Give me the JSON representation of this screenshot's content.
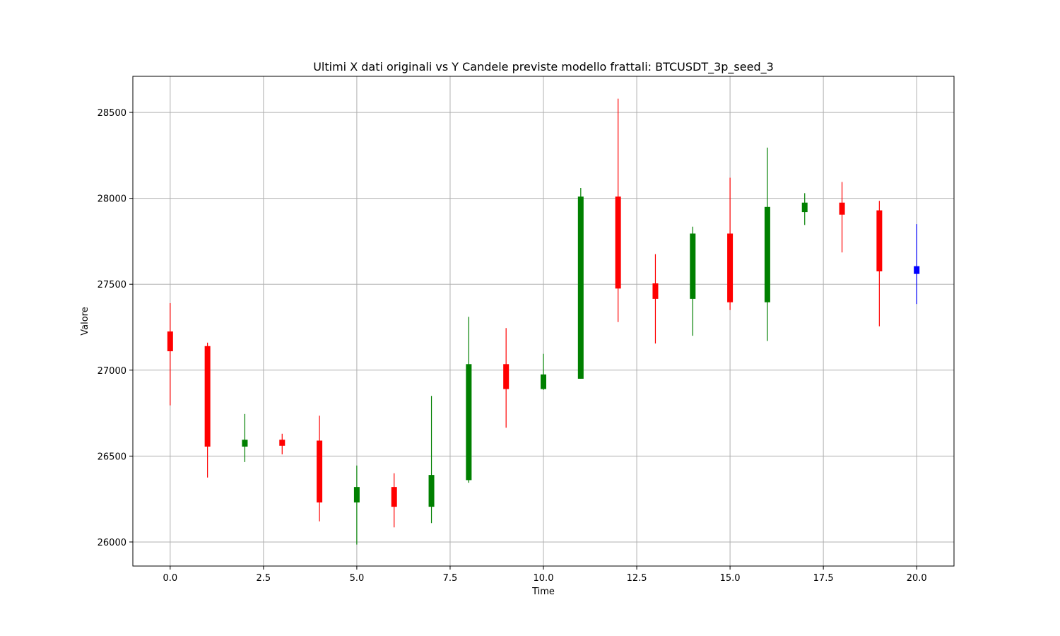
{
  "chart_data": {
    "type": "candlestick",
    "title": "Ultimi X dati originali vs Y Candele previste modello frattali: BTCUSDT_3p_seed_3",
    "xlabel": "Time",
    "ylabel": "Valore",
    "xlim": [
      -1,
      21
    ],
    "ylim": [
      25860,
      28710
    ],
    "xticks": [
      0,
      2.5,
      5,
      7.5,
      10,
      12.5,
      15,
      17.5,
      20
    ],
    "xtick_labels": [
      "0.0",
      "2.5",
      "5.0",
      "7.5",
      "10.0",
      "12.5",
      "15.0",
      "17.5",
      "20.0"
    ],
    "yticks": [
      26000,
      26500,
      27000,
      27500,
      28000,
      28500
    ],
    "ytick_labels": [
      "26000",
      "26500",
      "27000",
      "27500",
      "28000",
      "28500"
    ],
    "grid": true,
    "colors": {
      "up": "#008000",
      "down": "#ff0000",
      "predicted": "#0000ff",
      "grid": "#b0b0b0"
    },
    "candles": [
      {
        "t": 0,
        "open": 27225,
        "high": 27390,
        "low": 26795,
        "close": 27110,
        "color": "red"
      },
      {
        "t": 1,
        "open": 27140,
        "high": 27160,
        "low": 26375,
        "close": 26555,
        "color": "red"
      },
      {
        "t": 2,
        "open": 26555,
        "high": 26745,
        "low": 26465,
        "close": 26595,
        "color": "green"
      },
      {
        "t": 3,
        "open": 26595,
        "high": 26630,
        "low": 26510,
        "close": 26560,
        "color": "red"
      },
      {
        "t": 4,
        "open": 26590,
        "high": 26735,
        "low": 26120,
        "close": 26230,
        "color": "red"
      },
      {
        "t": 5,
        "open": 26230,
        "high": 26445,
        "low": 25985,
        "close": 26320,
        "color": "green"
      },
      {
        "t": 6,
        "open": 26320,
        "high": 26400,
        "low": 26085,
        "close": 26205,
        "color": "red"
      },
      {
        "t": 7,
        "open": 26205,
        "high": 26850,
        "low": 26110,
        "close": 26390,
        "color": "green"
      },
      {
        "t": 8,
        "open": 26360,
        "high": 27310,
        "low": 26345,
        "close": 27035,
        "color": "green"
      },
      {
        "t": 9,
        "open": 27035,
        "high": 27245,
        "low": 26665,
        "close": 26890,
        "color": "red"
      },
      {
        "t": 10,
        "open": 26890,
        "high": 27095,
        "low": 26885,
        "close": 26975,
        "color": "green"
      },
      {
        "t": 11,
        "open": 26950,
        "high": 28060,
        "low": 26950,
        "close": 28010,
        "color": "green"
      },
      {
        "t": 12,
        "open": 28010,
        "high": 28580,
        "low": 27280,
        "close": 27475,
        "color": "red"
      },
      {
        "t": 13,
        "open": 27505,
        "high": 27675,
        "low": 27155,
        "close": 27415,
        "color": "red"
      },
      {
        "t": 14,
        "open": 27415,
        "high": 27835,
        "low": 27200,
        "close": 27795,
        "color": "green"
      },
      {
        "t": 15,
        "open": 27795,
        "high": 28120,
        "low": 27350,
        "close": 27395,
        "color": "red"
      },
      {
        "t": 16,
        "open": 27395,
        "high": 28295,
        "low": 27170,
        "close": 27950,
        "color": "green"
      },
      {
        "t": 17,
        "open": 27920,
        "high": 28030,
        "low": 27845,
        "close": 27975,
        "color": "green"
      },
      {
        "t": 18,
        "open": 27975,
        "high": 28095,
        "low": 27685,
        "close": 27905,
        "color": "red"
      },
      {
        "t": 19,
        "open": 27930,
        "high": 27985,
        "low": 27255,
        "close": 27575,
        "color": "red"
      },
      {
        "t": 20,
        "open": 27605,
        "high": 27850,
        "low": 27385,
        "close": 27560,
        "color": "blue"
      }
    ]
  }
}
